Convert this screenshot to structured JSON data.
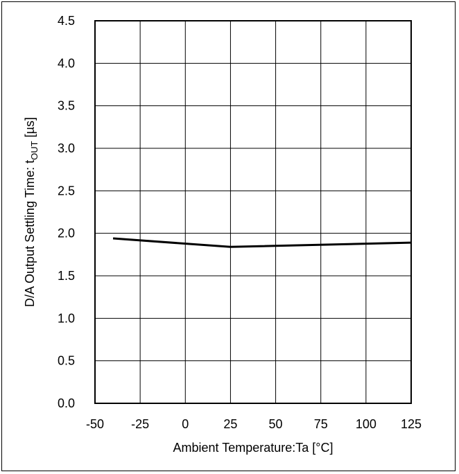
{
  "chart_data": {
    "type": "line",
    "title": "",
    "xlabel": "Ambient Temperature:Ta [°C]",
    "ylabel": {
      "prefix": "D/A Output Settling Time: t",
      "subscript": "OUT",
      "suffix": " [µs]"
    },
    "xlim": [
      -50,
      125
    ],
    "ylim": [
      0.0,
      4.5
    ],
    "x_ticks": [
      -50,
      -25,
      0,
      25,
      50,
      75,
      100,
      125
    ],
    "x_tick_labels": [
      "-50",
      "-25",
      "0",
      "25",
      "50",
      "75",
      "100",
      "125"
    ],
    "y_ticks": [
      0.0,
      0.5,
      1.0,
      1.5,
      2.0,
      2.5,
      3.0,
      3.5,
      4.0,
      4.5
    ],
    "y_tick_labels": [
      "0.0",
      "0.5",
      "1.0",
      "1.5",
      "2.0",
      "2.5",
      "3.0",
      "3.5",
      "4.0",
      "4.5"
    ],
    "grid": true,
    "legend": "none",
    "series": [
      {
        "x": [
          -40,
          25,
          125
        ],
        "y": [
          1.94,
          1.84,
          1.89
        ],
        "color": "#000000"
      }
    ]
  }
}
